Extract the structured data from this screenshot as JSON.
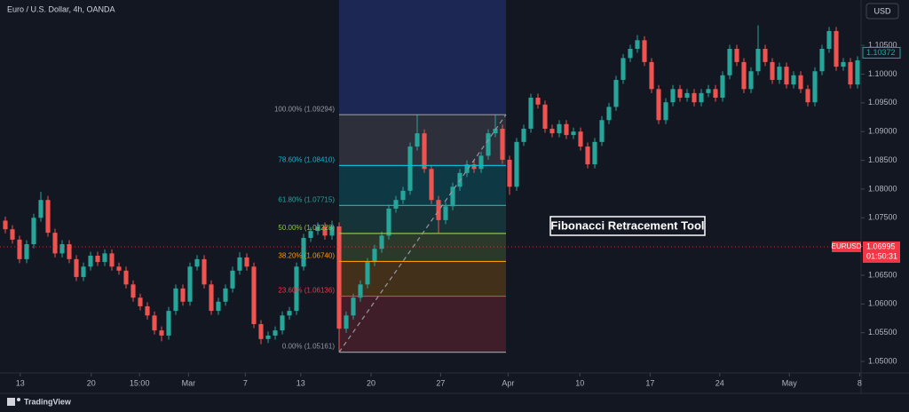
{
  "chart_data": {
    "type": "candlestick",
    "title": "Euro / U.S. Dollar, 4h, OANDA",
    "currency": "USD",
    "brand": "TradingView",
    "annotation": "Fibonacci Retracement Tool",
    "up_color": "#26a69a",
    "down_color": "#ef5350",
    "xlim": [
      -0.75,
      120.5
    ],
    "xticks": [
      {
        "value": 2.1,
        "label": "13"
      },
      {
        "value": 12.1,
        "label": "20"
      },
      {
        "value": 18.9,
        "label": "15:00"
      },
      {
        "value": 25.8,
        "label": "Mar"
      },
      {
        "value": 33.8,
        "label": "7"
      },
      {
        "value": 41.6,
        "label": "13"
      },
      {
        "value": 51.5,
        "label": "20"
      },
      {
        "value": 61.3,
        "label": "27"
      },
      {
        "value": 70.8,
        "label": "Apr"
      },
      {
        "value": 80.9,
        "label": "10"
      },
      {
        "value": 90.8,
        "label": "17"
      },
      {
        "value": 100.6,
        "label": "24"
      },
      {
        "value": 110.4,
        "label": "May"
      },
      {
        "value": 120.3,
        "label": "8"
      }
    ],
    "ylim": [
      1.048,
      1.1129
    ],
    "yticks": [
      {
        "value": 1.105,
        "label": "1.10500"
      },
      {
        "value": 1.1,
        "label": "1.10000"
      },
      {
        "value": 1.095,
        "label": "1.09500"
      },
      {
        "value": 1.09,
        "label": "1.09000"
      },
      {
        "value": 1.085,
        "label": "1.08500"
      },
      {
        "value": 1.08,
        "label": "1.08000"
      },
      {
        "value": 1.075,
        "label": "1.07500"
      },
      {
        "value": 1.07,
        "label": "1.07000"
      },
      {
        "value": 1.065,
        "label": "1.06500"
      },
      {
        "value": 1.06,
        "label": "1.06000"
      },
      {
        "value": 1.055,
        "label": "1.05500"
      },
      {
        "value": 1.05,
        "label": "1.05000"
      }
    ],
    "open": [
      1.0745,
      1.073,
      1.0712,
      1.0678,
      1.0704,
      1.075,
      1.0781,
      1.0724,
      1.0688,
      1.0704,
      1.0678,
      1.0647,
      1.0665,
      1.0684,
      1.0673,
      1.0688,
      1.0665,
      1.0658,
      1.0634,
      1.0611,
      1.0596,
      1.058,
      1.0554,
      1.0545,
      1.0588,
      1.0627,
      1.0604,
      1.0665,
      1.0678,
      1.0634,
      1.0588,
      1.0604,
      1.0627,
      1.0658,
      1.0681,
      1.0665,
      1.0565,
      1.0539,
      1.0545,
      1.0554,
      1.058,
      1.0588,
      1.0665,
      1.0715,
      1.0727,
      1.0735,
      1.0719,
      1.0735,
      1.0557,
      1.058,
      1.0611,
      1.0634,
      1.0673,
      1.0696,
      1.0719,
      1.0766,
      1.0781,
      1.0797,
      1.0874,
      1.0897,
      1.0835,
      1.0781,
      1.0746,
      1.077,
      1.0804,
      1.0828,
      1.0843,
      1.0835,
      1.0858,
      1.0897,
      1.0905,
      1.0851,
      1.0804,
      1.0882,
      1.0905,
      1.0959,
      1.0947,
      1.0905,
      1.0897,
      1.0913,
      1.0894,
      1.09,
      1.0874,
      1.0843,
      1.0882,
      1.092,
      1.0943,
      1.099,
      1.1028,
      1.1044,
      1.1059,
      1.1021,
      1.0974,
      1.092,
      1.0951,
      1.0974,
      1.0959,
      1.0967,
      1.0951,
      1.0967,
      1.0974,
      1.0959,
      1.0998,
      1.1044,
      1.1021,
      1.0974,
      1.1005,
      1.1044,
      1.1021,
      1.099,
      1.1013,
      1.0982,
      1.0998,
      1.0974,
      1.0951,
      1.1005,
      1.1044,
      1.1075,
      1.1013,
      1.1021,
      1.0982
    ],
    "high": [
      1.0752,
      1.0737,
      1.0719,
      1.0711,
      1.0757,
      1.0795,
      1.0788,
      1.0731,
      1.0711,
      1.0711,
      1.0685,
      1.0672,
      1.0691,
      1.0691,
      1.0695,
      1.0695,
      1.0672,
      1.0665,
      1.0641,
      1.0618,
      1.0603,
      1.0587,
      1.0561,
      1.0595,
      1.0634,
      1.0634,
      1.0672,
      1.0685,
      1.0685,
      1.0641,
      1.0611,
      1.0634,
      1.0665,
      1.069,
      1.0688,
      1.0672,
      1.0572,
      1.0552,
      1.0561,
      1.0587,
      1.0595,
      1.0672,
      1.0722,
      1.0734,
      1.0742,
      1.0742,
      1.0745,
      1.0742,
      1.0587,
      1.0618,
      1.0641,
      1.068,
      1.0703,
      1.0726,
      1.0773,
      1.0788,
      1.0804,
      1.0881,
      1.0929,
      1.0904,
      1.0842,
      1.0788,
      1.0777,
      1.0811,
      1.0835,
      1.085,
      1.085,
      1.0865,
      1.0904,
      1.0929,
      1.0912,
      1.0858,
      1.0889,
      1.0912,
      1.0966,
      1.0966,
      1.0954,
      1.0912,
      1.092,
      1.092,
      1.0907,
      1.0907,
      1.0881,
      1.0889,
      1.0927,
      1.095,
      1.0997,
      1.1035,
      1.1051,
      1.1068,
      1.1066,
      1.1028,
      1.0981,
      1.0958,
      1.0981,
      1.0981,
      1.0974,
      1.0974,
      1.0974,
      1.0981,
      1.0981,
      1.1005,
      1.1051,
      1.1051,
      1.1028,
      1.1012,
      1.1085,
      1.1051,
      1.1028,
      1.102,
      1.102,
      1.1005,
      1.1005,
      1.0981,
      1.1012,
      1.1051,
      1.1082,
      1.1082,
      1.1028,
      1.1028,
      1.1031
    ],
    "low": [
      1.0723,
      1.0705,
      1.0671,
      1.0671,
      1.0697,
      1.0743,
      1.0717,
      1.0681,
      1.0681,
      1.0671,
      1.064,
      1.064,
      1.0658,
      1.0666,
      1.0666,
      1.0658,
      1.0651,
      1.0627,
      1.0604,
      1.0589,
      1.0573,
      1.0547,
      1.0535,
      1.0538,
      1.0581,
      1.0597,
      1.0597,
      1.0658,
      1.0627,
      1.0581,
      1.0581,
      1.0597,
      1.062,
      1.0651,
      1.0658,
      1.0558,
      1.053,
      1.0532,
      1.0538,
      1.0547,
      1.0573,
      1.0581,
      1.0658,
      1.0708,
      1.072,
      1.0712,
      1.0712,
      1.0516,
      1.055,
      1.0573,
      1.0604,
      1.0627,
      1.0666,
      1.0689,
      1.0712,
      1.0759,
      1.0774,
      1.079,
      1.0867,
      1.0828,
      1.0774,
      1.0722,
      1.0739,
      1.0763,
      1.0797,
      1.0821,
      1.0828,
      1.0828,
      1.0851,
      1.089,
      1.0844,
      1.079,
      1.0797,
      1.0875,
      1.0898,
      1.094,
      1.0898,
      1.089,
      1.089,
      1.0887,
      1.0887,
      1.0867,
      1.0836,
      1.0836,
      1.0875,
      1.0913,
      1.0936,
      1.0983,
      1.1021,
      1.1037,
      1.1014,
      1.0967,
      1.0913,
      1.0913,
      1.0944,
      1.0952,
      1.0952,
      1.0944,
      1.0944,
      1.096,
      1.0952,
      1.0952,
      1.0991,
      1.1014,
      1.0967,
      1.0967,
      1.0998,
      1.1014,
      1.0983,
      1.0983,
      1.0975,
      1.0975,
      1.0967,
      1.0944,
      1.0944,
      1.0998,
      1.1037,
      1.1006,
      1.1006,
      1.0975,
      1.0975
    ],
    "close": [
      1.073,
      1.0712,
      1.0678,
      1.0704,
      1.075,
      1.0781,
      1.0724,
      1.0688,
      1.0704,
      1.0678,
      1.0647,
      1.0665,
      1.0684,
      1.0673,
      1.0688,
      1.0665,
      1.0658,
      1.0634,
      1.0611,
      1.0596,
      1.058,
      1.0554,
      1.0545,
      1.0588,
      1.0627,
      1.0604,
      1.0665,
      1.0678,
      1.0634,
      1.0588,
      1.0604,
      1.0627,
      1.0658,
      1.0681,
      1.0665,
      1.0565,
      1.0539,
      1.0545,
      1.0554,
      1.058,
      1.0588,
      1.0665,
      1.0715,
      1.0727,
      1.0735,
      1.0719,
      1.0735,
      1.0557,
      1.058,
      1.0611,
      1.0634,
      1.0673,
      1.0696,
      1.0719,
      1.0766,
      1.0781,
      1.0797,
      1.0874,
      1.0897,
      1.0835,
      1.0781,
      1.0746,
      1.077,
      1.0804,
      1.0828,
      1.0843,
      1.0835,
      1.0858,
      1.0897,
      1.0905,
      1.0851,
      1.0804,
      1.0882,
      1.0905,
      1.0959,
      1.0947,
      1.0905,
      1.0897,
      1.0913,
      1.0894,
      1.09,
      1.0874,
      1.0843,
      1.0882,
      1.092,
      1.0943,
      1.099,
      1.1028,
      1.1044,
      1.1059,
      1.1021,
      1.0974,
      1.092,
      1.0951,
      1.0974,
      1.0959,
      1.0967,
      1.0951,
      1.0967,
      1.0974,
      1.0959,
      1.0998,
      1.1044,
      1.1021,
      1.0974,
      1.1005,
      1.1044,
      1.1021,
      1.099,
      1.1013,
      1.0982,
      1.0998,
      1.0974,
      1.0951,
      1.1005,
      1.1044,
      1.1075,
      1.1013,
      1.1021,
      1.0982,
      1.1024
    ],
    "last_price": 1.10372,
    "last_price_color": "#26a69a",
    "current_price": {
      "symbol": "EURUSD",
      "value": 1.06995,
      "countdown": "01:50:31",
      "color": "#f23645"
    },
    "fibonacci": {
      "anchor_start": 47,
      "anchor_end": 70.5,
      "above_color": "#1f2a5c",
      "levels": [
        {
          "label": "100.00% (1.09294)",
          "price": 1.09294,
          "color": "#9598a1"
        },
        {
          "label": "78.60% (1.08410)",
          "price": 1.0841,
          "color": "#00bcd4"
        },
        {
          "label": "61.80% (1.07715)",
          "price": 1.07715,
          "color": "#26a69a"
        },
        {
          "label": "50.00% (1.07228)",
          "price": 1.07228,
          "color": "#8bc34a"
        },
        {
          "label": "38.20% (1.06740)",
          "price": 1.0674,
          "color": "#ff9800"
        },
        {
          "label": "23.60% (1.06136)",
          "price": 1.06136,
          "color": "#f23645"
        },
        {
          "label": "0.00% (1.05161)",
          "price": 1.05161,
          "color": "#9598a1"
        }
      ]
    }
  }
}
